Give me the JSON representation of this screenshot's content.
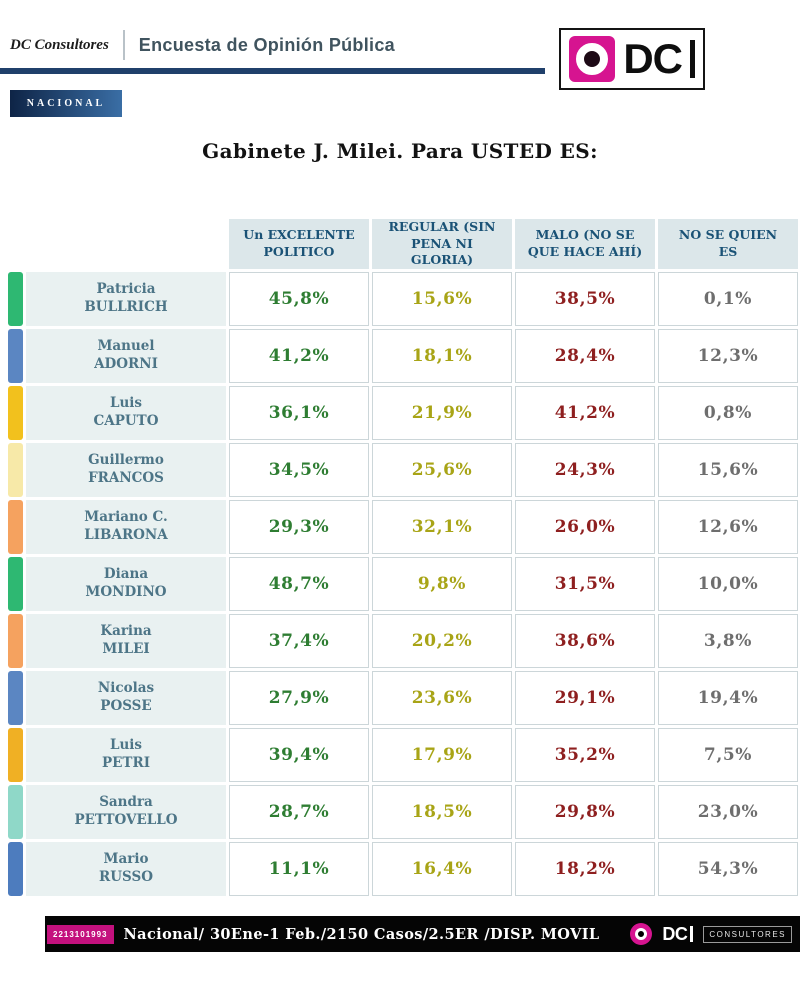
{
  "header": {
    "brand": "DC Consultores",
    "title": "Encuesta de Opinión Pública"
  },
  "logo": {
    "letters": "DC"
  },
  "badge": {
    "label": "NACIONAL"
  },
  "page_title": "Gabinete J. Milei.  Para USTED ES:",
  "colors": {
    "excelente": "#2e7d32",
    "regular": "#a8a416",
    "malo": "#8e1f1f",
    "no_se": "#6e6e6e",
    "accent_magenta": "#d61490",
    "navy_rule": "#20406b"
  },
  "chart_data": {
    "type": "table",
    "title": "Gabinete J. Milei. Para USTED ES:",
    "columns": [
      "Un EXCELENTE POLITICO",
      "REGULAR (SIN PENA NI GLORIA)",
      "MALO (NO SE QUE HACE AHÍ)",
      "NO SE QUIEN ES"
    ],
    "value_color_keys": [
      "excelente",
      "regular",
      "malo",
      "no_se"
    ],
    "rows": [
      {
        "name": "Patricia BULLRICH",
        "bar_color": "#2eb872",
        "display": [
          "45,8%",
          "15,6%",
          "38,5%",
          "0,1%"
        ],
        "values": [
          45.8,
          15.6,
          38.5,
          0.1
        ]
      },
      {
        "name": "Manuel ADORNI",
        "bar_color": "#5b86c2",
        "display": [
          "41,2%",
          "18,1%",
          "28,4%",
          "12,3%"
        ],
        "values": [
          41.2,
          18.1,
          28.4,
          12.3
        ]
      },
      {
        "name": "Luis CAPUTO",
        "bar_color": "#f2c11d",
        "display": [
          "36,1%",
          "21,9%",
          "41,2%",
          "0,8%"
        ],
        "values": [
          36.1,
          21.9,
          41.2,
          0.8
        ]
      },
      {
        "name": "Guillermo FRANCOS",
        "bar_color": "#f7e9a8",
        "display": [
          "34,5%",
          "25,6%",
          "24,3%",
          "15,6%"
        ],
        "values": [
          34.5,
          25.6,
          24.3,
          15.6
        ]
      },
      {
        "name": "Mariano C. LIBARONA",
        "bar_color": "#f5a25f",
        "display": [
          "29,3%",
          "32,1%",
          "26,0%",
          "12,6%"
        ],
        "values": [
          29.3,
          32.1,
          26.0,
          12.6
        ]
      },
      {
        "name": "Diana MONDINO",
        "bar_color": "#2eb872",
        "display": [
          "48,7%",
          "9,8%",
          "31,5%",
          "10,0%"
        ],
        "values": [
          48.7,
          9.8,
          31.5,
          10.0
        ]
      },
      {
        "name": "Karina MILEI",
        "bar_color": "#f5a25f",
        "display": [
          "37,4%",
          "20,2%",
          "38,6%",
          "3,8%"
        ],
        "values": [
          37.4,
          20.2,
          38.6,
          3.8
        ]
      },
      {
        "name": "Nicolas POSSE",
        "bar_color": "#5b86c2",
        "display": [
          "27,9%",
          "23,6%",
          "29,1%",
          "19,4%"
        ],
        "values": [
          27.9,
          23.6,
          29.1,
          19.4
        ]
      },
      {
        "name": "Luis PETRI",
        "bar_color": "#f0b024",
        "display": [
          "39,4%",
          "17,9%",
          "35,2%",
          "7,5%"
        ],
        "values": [
          39.4,
          17.9,
          35.2,
          7.5
        ]
      },
      {
        "name": "Sandra PETTOVELLO",
        "bar_color": "#8fd8c8",
        "display": [
          "28,7%",
          "18,5%",
          "29,8%",
          "23,0%"
        ],
        "values": [
          28.7,
          18.5,
          29.8,
          23.0
        ]
      },
      {
        "name": "Mario RUSSO",
        "bar_color": "#4d7cbe",
        "display": [
          "11,1%",
          "16,4%",
          "18,2%",
          "54,3%"
        ],
        "values": [
          11.1,
          16.4,
          18.2,
          54.3
        ]
      }
    ]
  },
  "footer": {
    "tag": "2213101993",
    "text": "Nacional/ 30Ene-1 Feb./2150 Casos/2.5ER /DISP. MOVIL",
    "logo_letters": "DC",
    "logo_sub": "CONSULTORES"
  }
}
